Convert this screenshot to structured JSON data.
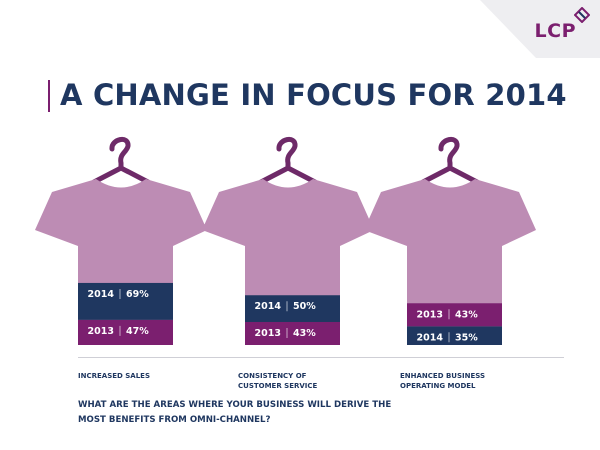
{
  "brand": {
    "logo_text": "LCP"
  },
  "title": "A CHANGE IN FOCUS FOR 2014",
  "question": "WHAT ARE THE AREAS WHERE YOUR BUSINESS WILL DERIVE THE MOST BENEFITS FROM OMNI-CHANNEL?",
  "colors": {
    "shirt": "#bd8cb4",
    "year_2014": "#1f3760",
    "year_2013": "#7b1f6f",
    "hanger": "#6e2a68",
    "text": "#1f3760"
  },
  "chart_data": {
    "type": "bar",
    "title": "A CHANGE IN FOCUS FOR 2014",
    "categories": [
      "INCREASED SALES",
      "CONSISTENCY OF\nCUSTOMER SERVICE",
      "ENHANCED BUSINESS\nOPERATING MODEL"
    ],
    "series": [
      {
        "name": "2014",
        "values": [
          69,
          50,
          35
        ]
      },
      {
        "name": "2013",
        "values": [
          47,
          43,
          43
        ]
      }
    ],
    "bars": [
      [
        {
          "year": "2014",
          "label": "2014",
          "value_label": "69%"
        },
        {
          "year": "2013",
          "label": "2013",
          "value_label": "47%"
        }
      ],
      [
        {
          "year": "2014",
          "label": "2014",
          "value_label": "50%"
        },
        {
          "year": "2013",
          "label": "2013",
          "value_label": "43%"
        }
      ],
      [
        {
          "year": "2013",
          "label": "2013",
          "value_label": "43%"
        },
        {
          "year": "2014",
          "label": "2014",
          "value_label": "35%"
        }
      ]
    ]
  }
}
